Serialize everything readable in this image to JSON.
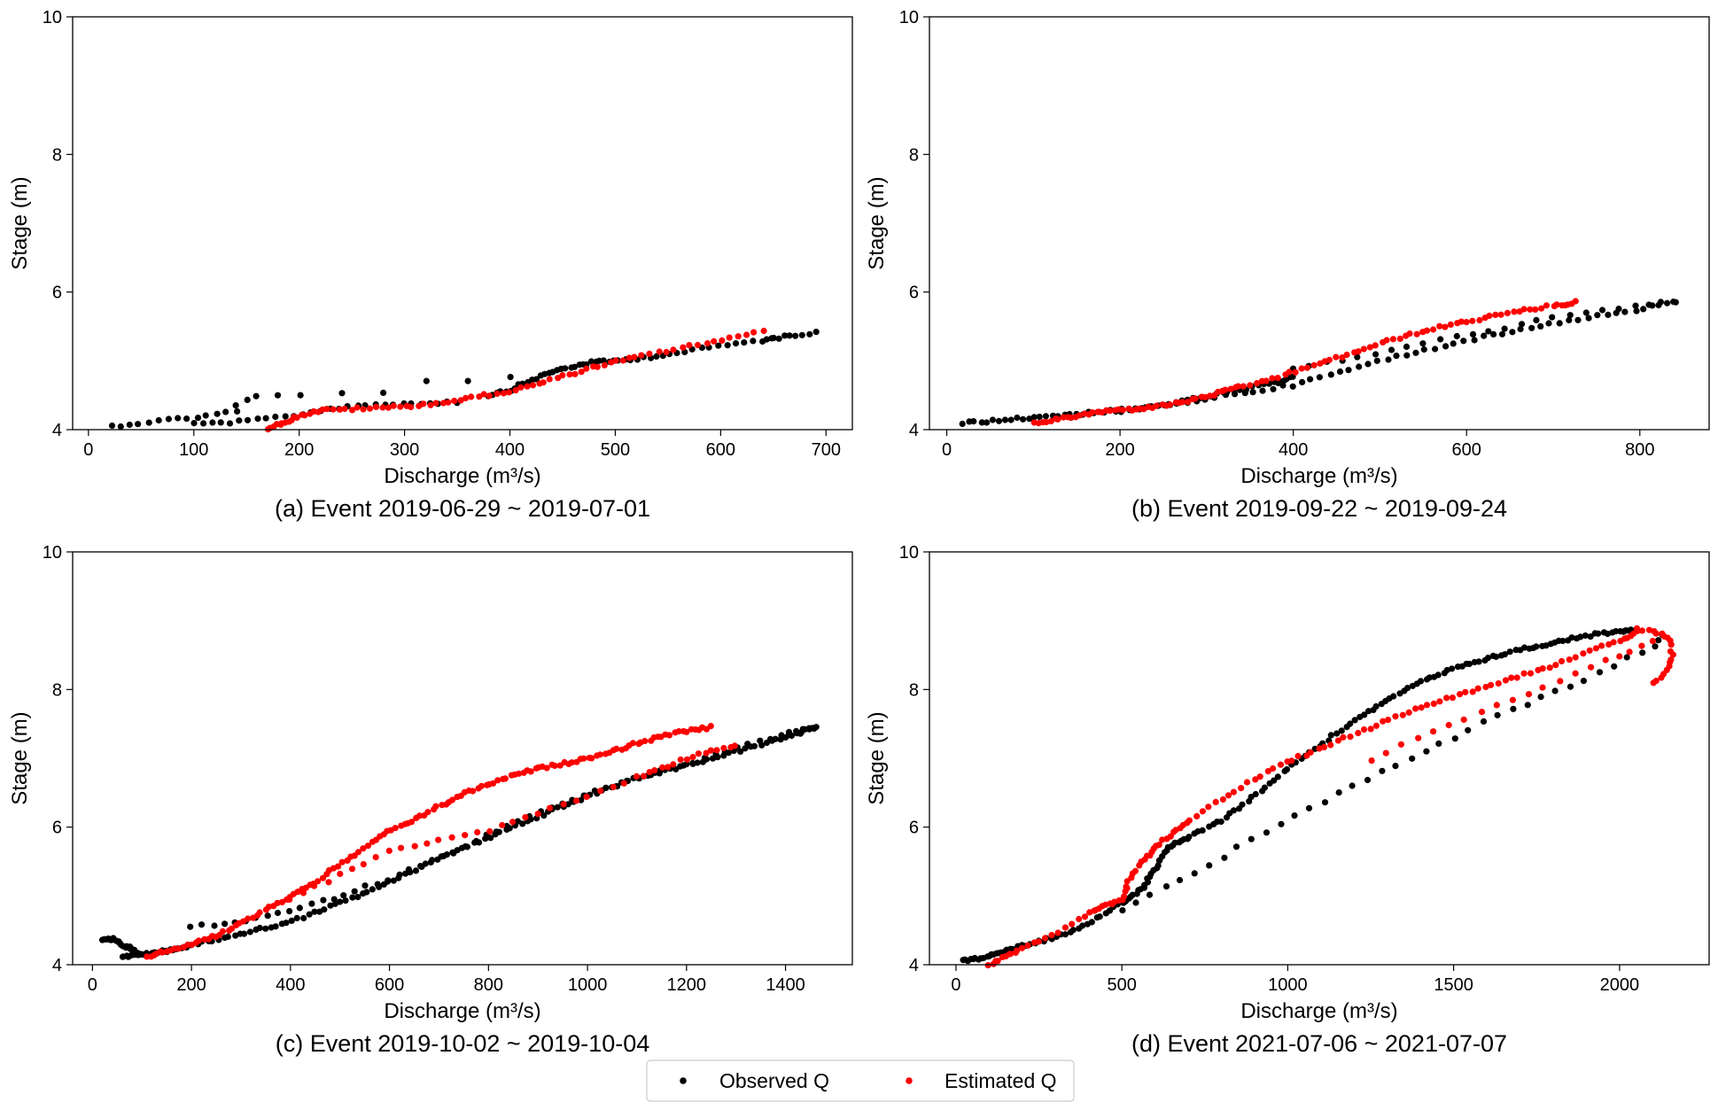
{
  "chart_data": [
    {
      "type": "scatter",
      "caption": "(a) Event 2019-06-29 ~ 2019-07-01",
      "xlabel": "Discharge (m³/s)",
      "ylabel": "Stage (m)",
      "xlim": [
        -15,
        725
      ],
      "ylim": [
        4,
        10
      ],
      "xticks": [
        0,
        100,
        200,
        300,
        400,
        500,
        600,
        700
      ],
      "yticks": [
        4,
        6,
        8,
        10
      ],
      "grid": false,
      "series": [
        {
          "name": "Observed Q",
          "color": "#000000",
          "segments": [
            {
              "x": [
                22,
                40,
                60,
                80,
                100,
                120,
                140
              ],
              "y": [
                4.05,
                4.08,
                4.12,
                4.15,
                4.18,
                4.22,
                4.28
              ],
              "n": 14
            },
            {
              "x": [
                140,
                150,
                160,
                180,
                200,
                240,
                280,
                320,
                360,
                400
              ],
              "y": [
                4.35,
                4.42,
                4.48,
                4.5,
                4.5,
                4.52,
                4.55,
                4.7,
                4.72,
                4.75
              ],
              "n": 10
            },
            {
              "x": [
                100,
                150,
                200,
                250,
                300,
                350
              ],
              "y": [
                4.08,
                4.12,
                4.22,
                4.35,
                4.38,
                4.4
              ],
              "n": 30
            },
            {
              "x": [
                380,
                400,
                420,
                440,
                460,
                480,
                500,
                530,
                560,
                600,
                640,
                660,
                690
              ],
              "y": [
                4.5,
                4.58,
                4.72,
                4.84,
                4.92,
                4.98,
                5.0,
                5.05,
                5.12,
                5.22,
                5.3,
                5.35,
                5.42
              ],
              "n": 60
            }
          ]
        },
        {
          "name": "Estimated Q",
          "color": "#ff0000",
          "segments": [
            {
              "x": [
                170,
                185,
                200,
                220,
                250,
                280,
                310,
                340,
                370,
                400,
                430,
                460,
                490,
                520,
                560,
                600,
                640
              ],
              "y": [
                4.02,
                4.1,
                4.2,
                4.28,
                4.3,
                4.32,
                4.35,
                4.4,
                4.48,
                4.56,
                4.68,
                4.82,
                4.95,
                5.05,
                5.18,
                5.3,
                5.42
              ],
              "n": 85
            }
          ]
        }
      ]
    },
    {
      "type": "scatter",
      "caption": "(b) Event 2019-09-22 ~ 2019-09-24",
      "xlabel": "Discharge (m³/s)",
      "ylabel": "Stage (m)",
      "xlim": [
        -20,
        880
      ],
      "ylim": [
        4,
        10
      ],
      "xticks": [
        0,
        200,
        400,
        600,
        800
      ],
      "yticks": [
        4,
        6,
        8,
        10
      ],
      "grid": false,
      "series": [
        {
          "name": "Observed Q",
          "color": "#000000",
          "segments": [
            {
              "x": [
                18,
                60,
                100,
                140,
                180,
                220,
                260,
                300,
                340,
                380,
                400
              ],
              "y": [
                4.1,
                4.13,
                4.18,
                4.22,
                4.26,
                4.3,
                4.38,
                4.48,
                4.58,
                4.68,
                4.78
              ],
              "n": 60
            },
            {
              "x": [
                200,
                250,
                300,
                350,
                400,
                450,
                500,
                550,
                600,
                650,
                700,
                750,
                800,
                840
              ],
              "y": [
                4.25,
                4.35,
                4.45,
                4.55,
                4.65,
                4.82,
                5.0,
                5.15,
                5.3,
                5.42,
                5.55,
                5.65,
                5.75,
                5.86
              ],
              "n": 60
            },
            {
              "x": [
                400,
                450,
                500,
                550,
                600,
                650,
                700,
                750,
                800,
                840
              ],
              "y": [
                4.88,
                5.0,
                5.12,
                5.25,
                5.38,
                5.5,
                5.62,
                5.72,
                5.8,
                5.86
              ],
              "n": 25
            }
          ]
        },
        {
          "name": "Estimated Q",
          "color": "#ff0000",
          "segments": [
            {
              "x": [
                100,
                130,
                160,
                190,
                220,
                250,
                280,
                310,
                340,
                380,
                420,
                460,
                500,
                540,
                580,
                620,
                660,
                700,
                725
              ],
              "y": [
                4.1,
                4.15,
                4.22,
                4.28,
                4.3,
                4.35,
                4.42,
                4.52,
                4.62,
                4.75,
                4.92,
                5.08,
                5.25,
                5.4,
                5.52,
                5.62,
                5.72,
                5.8,
                5.85
              ],
              "n": 110
            }
          ]
        }
      ]
    },
    {
      "type": "scatter",
      "caption": "(c) Event 2019-10-02 ~ 2019-10-04",
      "xlabel": "Discharge (m³/s)",
      "ylabel": "Stage (m)",
      "xlim": [
        -40,
        1535
      ],
      "ylim": [
        4,
        10
      ],
      "xticks": [
        0,
        200,
        400,
        600,
        800,
        1000,
        1200,
        1400
      ],
      "yticks": [
        4,
        6,
        8,
        10
      ],
      "grid": false,
      "series": [
        {
          "name": "Observed Q",
          "color": "#000000",
          "segments": [
            {
              "x": [
                20,
                40,
                60,
                80,
                100
              ],
              "y": [
                4.35,
                4.38,
                4.3,
                4.22,
                4.15
              ],
              "n": 25
            },
            {
              "x": [
                60,
                100,
                150,
                200,
                300,
                400,
                500,
                600,
                700,
                800,
                900,
                1000,
                1100,
                1200,
                1300,
                1400,
                1460
              ],
              "y": [
                4.12,
                4.15,
                4.2,
                4.28,
                4.45,
                4.62,
                4.9,
                5.2,
                5.55,
                5.85,
                6.15,
                6.45,
                6.72,
                6.9,
                7.1,
                7.3,
                7.45
              ],
              "n": 150
            },
            {
              "x": [
                200,
                300,
                400,
                500,
                600,
                700,
                800,
                900,
                1000,
                1100,
                1200,
                1300,
                1400,
                1460
              ],
              "y": [
                4.55,
                4.62,
                4.78,
                5.0,
                5.25,
                5.55,
                5.9,
                6.2,
                6.48,
                6.7,
                6.9,
                7.15,
                7.35,
                7.45
              ],
              "n": 60
            }
          ]
        },
        {
          "name": "Estimated Q",
          "color": "#ff0000",
          "segments": [
            {
              "x": [
                110,
                150,
                200,
                250,
                300,
                350,
                400,
                450,
                500,
                550,
                600,
                650,
                700,
                750,
                800,
                850,
                900,
                950,
                1000,
                1050,
                1100,
                1150,
                1200,
                1250
              ],
              "y": [
                4.12,
                4.2,
                4.3,
                4.42,
                4.6,
                4.8,
                5.0,
                5.2,
                5.45,
                5.7,
                5.95,
                6.1,
                6.3,
                6.48,
                6.62,
                6.75,
                6.85,
                6.92,
                7.0,
                7.1,
                7.22,
                7.32,
                7.4,
                7.45
              ],
              "n": 140
            },
            {
              "x": [
                400,
                500,
                600,
                700,
                800,
                900,
                1000,
                1100,
                1150,
                1200,
                1250,
                1300
              ],
              "y": [
                4.95,
                5.3,
                5.65,
                5.82,
                5.95,
                6.2,
                6.45,
                6.72,
                6.85,
                7.0,
                7.1,
                7.2
              ],
              "n": 45
            }
          ]
        }
      ]
    },
    {
      "type": "scatter",
      "caption": "(d) Event 2021-07-06 ~ 2021-07-07",
      "xlabel": "Discharge (m³/s)",
      "ylabel": "Stage (m)",
      "xlim": [
        -80,
        2270
      ],
      "ylim": [
        4,
        10
      ],
      "xticks": [
        0,
        500,
        1000,
        1500,
        2000
      ],
      "yticks": [
        4,
        6,
        8,
        10
      ],
      "grid": false,
      "series": [
        {
          "name": "Observed Q",
          "color": "#000000",
          "segments": [
            {
              "x": [
                20,
                80,
                140,
                200,
                300,
                400,
                500,
                560,
                600,
                640,
                700,
                800,
                900,
                1000,
                1100,
                1200,
                1300,
                1400,
                1500,
                1600,
                1700,
                1800,
                1900,
                2000,
                2050
              ],
              "y": [
                4.05,
                4.1,
                4.18,
                4.28,
                4.4,
                4.6,
                4.9,
                5.1,
                5.4,
                5.7,
                5.85,
                6.1,
                6.45,
                6.85,
                7.2,
                7.55,
                7.85,
                8.1,
                8.3,
                8.45,
                8.58,
                8.68,
                8.78,
                8.85,
                8.88
              ],
              "n": 180
            },
            {
              "x": [
                500,
                600,
                700,
                800,
                900,
                1000,
                1100,
                1200,
                1300,
                1400,
                1500,
                1600,
                1700,
                1800,
                1900,
                2000,
                2100,
                2130
              ],
              "y": [
                4.8,
                5.05,
                5.3,
                5.55,
                5.85,
                6.1,
                6.35,
                6.6,
                6.85,
                7.05,
                7.3,
                7.55,
                7.75,
                7.95,
                8.15,
                8.4,
                8.62,
                8.8
              ],
              "n": 40
            }
          ]
        },
        {
          "name": "Estimated Q",
          "color": "#ff0000",
          "segments": [
            {
              "x": [
                100,
                150,
                200,
                300,
                400,
                450,
                500,
                520,
                560,
                600,
                650,
                700,
                800,
                900,
                1000,
                1100,
                1200,
                1300,
                1400,
                1500,
                1600,
                1700,
                1800,
                1900,
                2000,
                2050
              ],
              "y": [
                4.0,
                4.12,
                4.25,
                4.45,
                4.75,
                4.85,
                4.95,
                5.2,
                5.5,
                5.7,
                5.9,
                6.1,
                6.4,
                6.7,
                6.95,
                7.15,
                7.35,
                7.55,
                7.75,
                7.9,
                8.05,
                8.2,
                8.35,
                8.55,
                8.7,
                8.85
              ],
              "n": 130
            },
            {
              "x": [
                2050,
                2100,
                2130,
                2150,
                2160,
                2150,
                2130,
                2100
              ],
              "y": [
                8.88,
                8.85,
                8.8,
                8.7,
                8.5,
                8.35,
                8.2,
                8.1
              ],
              "n": 20
            },
            {
              "x": [
                1250,
                1350,
                1450,
                1550,
                1650,
                1750,
                1850,
                1950,
                2030,
                2100
              ],
              "y": [
                6.95,
                7.2,
                7.4,
                7.6,
                7.8,
                8.0,
                8.2,
                8.4,
                8.55,
                8.7
              ],
              "n": 20
            }
          ]
        }
      ]
    }
  ],
  "legend": {
    "position": "bottom-center",
    "entries": [
      {
        "label": "Observed Q",
        "color": "#000000"
      },
      {
        "label": "Estimated Q",
        "color": "#ff0000"
      }
    ]
  }
}
